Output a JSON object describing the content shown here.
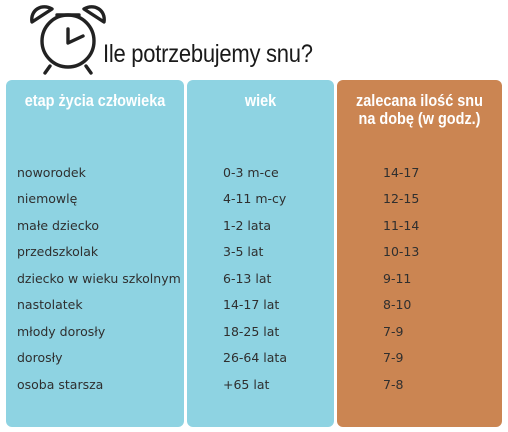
{
  "title": "Ile potrzebujemy snu?",
  "colors": {
    "blue_column": "#8ed3e2",
    "orange_column": "#cb8552",
    "header_text": "#ffffff",
    "body_text": "#2f2f2f"
  },
  "icons": {
    "clock": "alarm-clock-icon"
  },
  "table": {
    "headers": {
      "stage": "etap życia człowieka",
      "age": "wiek",
      "sleep_line1": "zalecana ilość snu",
      "sleep_line2": "na dobę  (w godz.)"
    },
    "rows": [
      {
        "stage": "noworodek",
        "age": "0-3 m-ce",
        "sleep": "14-17"
      },
      {
        "stage": "niemowlę",
        "age": "4-11 m-cy",
        "sleep": "12-15"
      },
      {
        "stage": "małe dziecko",
        "age": "1-2 lata",
        "sleep": "11-14"
      },
      {
        "stage": "przedszkolak",
        "age": "3-5 lat",
        "sleep": "10-13"
      },
      {
        "stage": "dziecko w wieku szkolnym",
        "age": "6-13 lat",
        "sleep": "9-11"
      },
      {
        "stage": "nastolatek",
        "age": "14-17 lat",
        "sleep": "8-10"
      },
      {
        "stage": "młody dorosły",
        "age": "18-25 lat",
        "sleep": "7-9"
      },
      {
        "stage": "dorosły",
        "age": "26-64 lata",
        "sleep": "7-9"
      },
      {
        "stage": "osoba starsza",
        "age": "+65 lat",
        "sleep": "7-8"
      }
    ]
  }
}
